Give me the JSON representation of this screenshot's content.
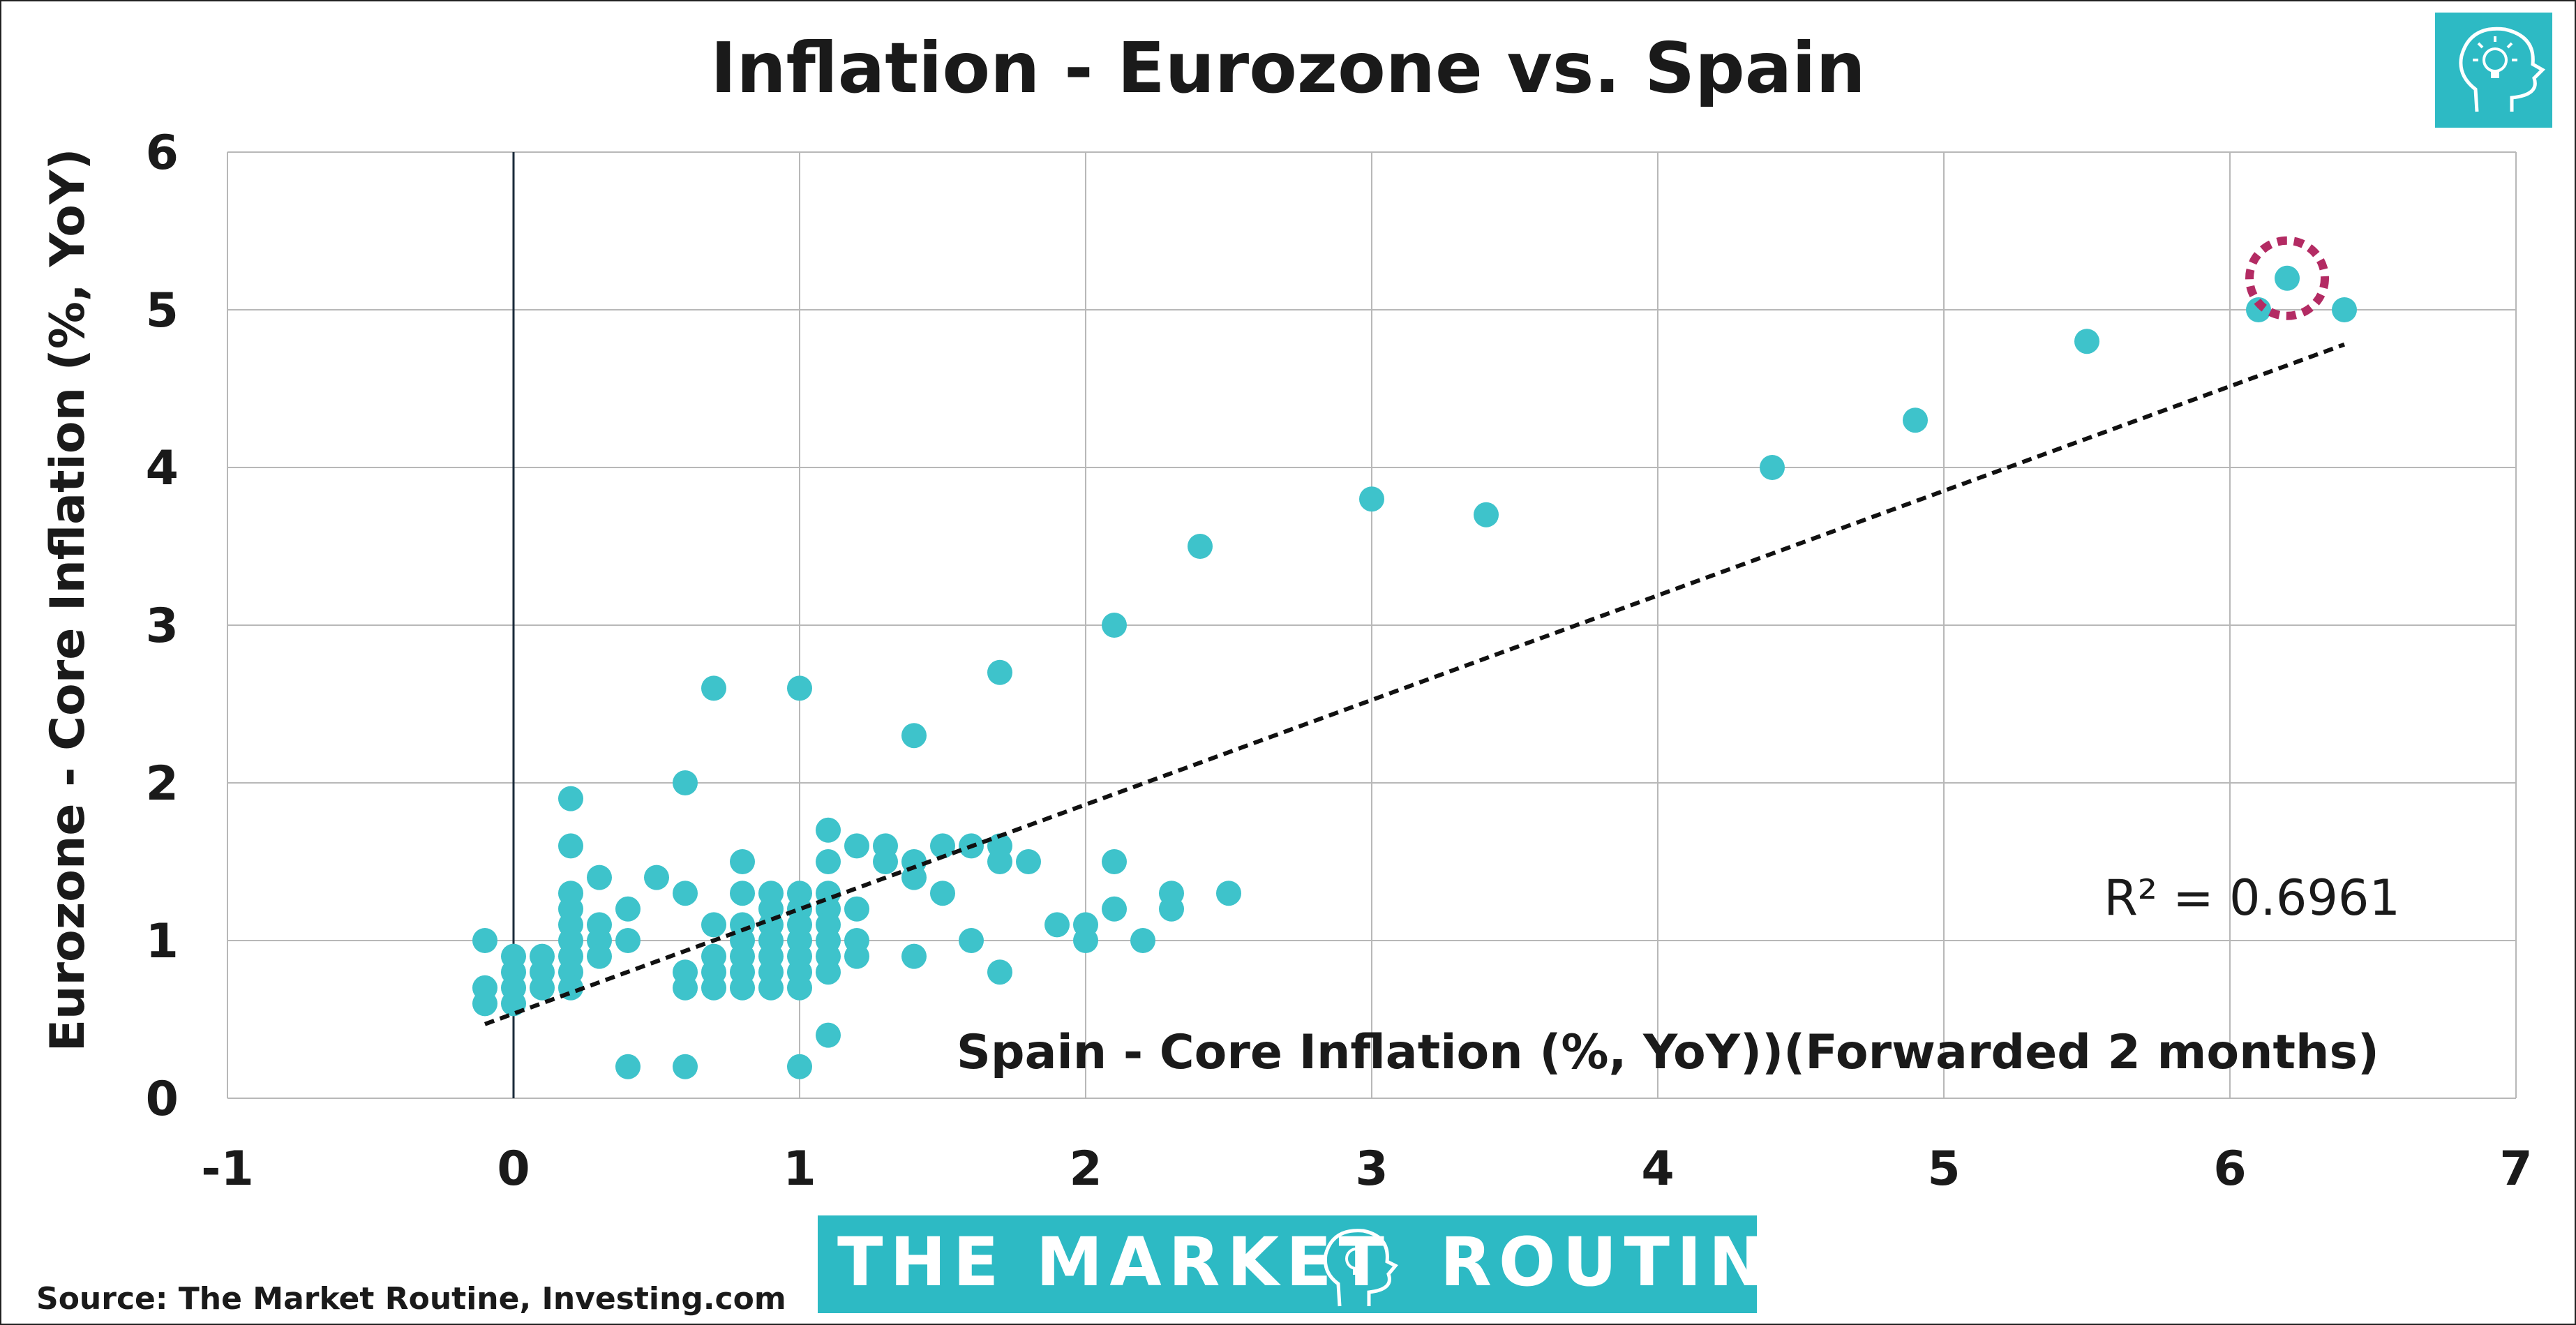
{
  "colors": {
    "point": "#3ec3cb",
    "highlight_ring": "#b32b63",
    "trendline": "#111111",
    "grid": "#b8b8b8",
    "brand": "#2dbac4"
  },
  "logo": {
    "icon": "head-lightbulb-icon"
  },
  "banner": {
    "text_left": "THE MARKET",
    "text_right": "ROUTINE",
    "icon": "head-lightbulb-icon"
  },
  "source": "Source: The Market Routine, Investing.com",
  "chart_data": {
    "type": "scatter",
    "title": "Inflation - Eurozone vs. Spain",
    "xlabel": "Spain - Core Inflation (%, YoY))(Forwarded 2 months)",
    "ylabel": "Eurozone - Core Inflation (%, YoY)",
    "xlim": [
      -1,
      7
    ],
    "ylim": [
      0,
      6
    ],
    "x_ticks": [
      "-1",
      "0",
      "1",
      "2",
      "3",
      "4",
      "5",
      "6",
      "7"
    ],
    "y_ticks": [
      "0",
      "1",
      "2",
      "3",
      "4",
      "5",
      "6"
    ],
    "grid": true,
    "trendline": {
      "type": "linear",
      "x_start": -0.1,
      "y_start": 0.47,
      "x_end": 6.4,
      "y_end": 4.78,
      "r_squared_label": "R² = 0.6961"
    },
    "highlight": {
      "x": 6.2,
      "y": 5.2
    },
    "points": [
      [
        -0.1,
        1.0
      ],
      [
        -0.1,
        0.7
      ],
      [
        -0.1,
        0.6
      ],
      [
        0,
        0.9
      ],
      [
        0,
        0.8
      ],
      [
        0,
        0.7
      ],
      [
        0,
        0.6
      ],
      [
        0.1,
        0.9
      ],
      [
        0.1,
        0.8
      ],
      [
        0.1,
        0.7
      ],
      [
        0.2,
        1.9
      ],
      [
        0.2,
        1.6
      ],
      [
        0.2,
        1.3
      ],
      [
        0.2,
        1.2
      ],
      [
        0.2,
        1.1
      ],
      [
        0.2,
        1.0
      ],
      [
        0.2,
        0.9
      ],
      [
        0.2,
        0.8
      ],
      [
        0.2,
        0.7
      ],
      [
        0.3,
        1.4
      ],
      [
        0.3,
        1.1
      ],
      [
        0.3,
        1.0
      ],
      [
        0.3,
        0.9
      ],
      [
        0.4,
        1.2
      ],
      [
        0.4,
        1.0
      ],
      [
        0.4,
        0.2
      ],
      [
        0.5,
        1.4
      ],
      [
        0.6,
        2.0
      ],
      [
        0.6,
        1.3
      ],
      [
        0.6,
        0.8
      ],
      [
        0.6,
        0.7
      ],
      [
        0.6,
        0.2
      ],
      [
        0.7,
        2.6
      ],
      [
        0.7,
        1.1
      ],
      [
        0.7,
        0.9
      ],
      [
        0.7,
        0.8
      ],
      [
        0.7,
        0.7
      ],
      [
        0.8,
        1.5
      ],
      [
        0.8,
        1.3
      ],
      [
        0.8,
        1.1
      ],
      [
        0.8,
        1.0
      ],
      [
        0.8,
        0.9
      ],
      [
        0.8,
        0.8
      ],
      [
        0.8,
        0.7
      ],
      [
        0.9,
        1.3
      ],
      [
        0.9,
        1.2
      ],
      [
        0.9,
        1.1
      ],
      [
        0.9,
        1.0
      ],
      [
        0.9,
        0.9
      ],
      [
        0.9,
        0.8
      ],
      [
        0.9,
        0.7
      ],
      [
        1.0,
        2.6
      ],
      [
        1.0,
        1.3
      ],
      [
        1.0,
        1.2
      ],
      [
        1.0,
        1.1
      ],
      [
        1.0,
        1.0
      ],
      [
        1.0,
        0.9
      ],
      [
        1.0,
        0.8
      ],
      [
        1.0,
        0.7
      ],
      [
        1.0,
        0.2
      ],
      [
        1.1,
        1.7
      ],
      [
        1.1,
        1.5
      ],
      [
        1.1,
        1.3
      ],
      [
        1.1,
        1.2
      ],
      [
        1.1,
        1.1
      ],
      [
        1.1,
        1.0
      ],
      [
        1.1,
        0.9
      ],
      [
        1.1,
        0.8
      ],
      [
        1.1,
        0.4
      ],
      [
        1.2,
        1.6
      ],
      [
        1.2,
        1.2
      ],
      [
        1.2,
        1.0
      ],
      [
        1.2,
        0.9
      ],
      [
        1.3,
        1.6
      ],
      [
        1.3,
        1.5
      ],
      [
        1.4,
        2.3
      ],
      [
        1.4,
        1.5
      ],
      [
        1.4,
        1.4
      ],
      [
        1.4,
        0.9
      ],
      [
        1.5,
        1.6
      ],
      [
        1.5,
        1.3
      ],
      [
        1.6,
        1.6
      ],
      [
        1.6,
        1.0
      ],
      [
        1.7,
        2.7
      ],
      [
        1.7,
        1.6
      ],
      [
        1.7,
        1.5
      ],
      [
        1.7,
        0.8
      ],
      [
        1.8,
        1.5
      ],
      [
        1.9,
        1.1
      ],
      [
        2.0,
        1.1
      ],
      [
        2.0,
        1.0
      ],
      [
        2.1,
        3.0
      ],
      [
        2.1,
        1.5
      ],
      [
        2.1,
        1.2
      ],
      [
        2.2,
        1.0
      ],
      [
        2.3,
        1.3
      ],
      [
        2.3,
        1.2
      ],
      [
        2.4,
        3.5
      ],
      [
        2.5,
        1.3
      ],
      [
        3.0,
        3.8
      ],
      [
        3.4,
        3.7
      ],
      [
        4.4,
        4.0
      ],
      [
        4.9,
        4.3
      ],
      [
        5.5,
        4.8
      ],
      [
        6.1,
        5.0
      ],
      [
        6.2,
        5.2
      ],
      [
        6.4,
        5.0
      ]
    ]
  }
}
